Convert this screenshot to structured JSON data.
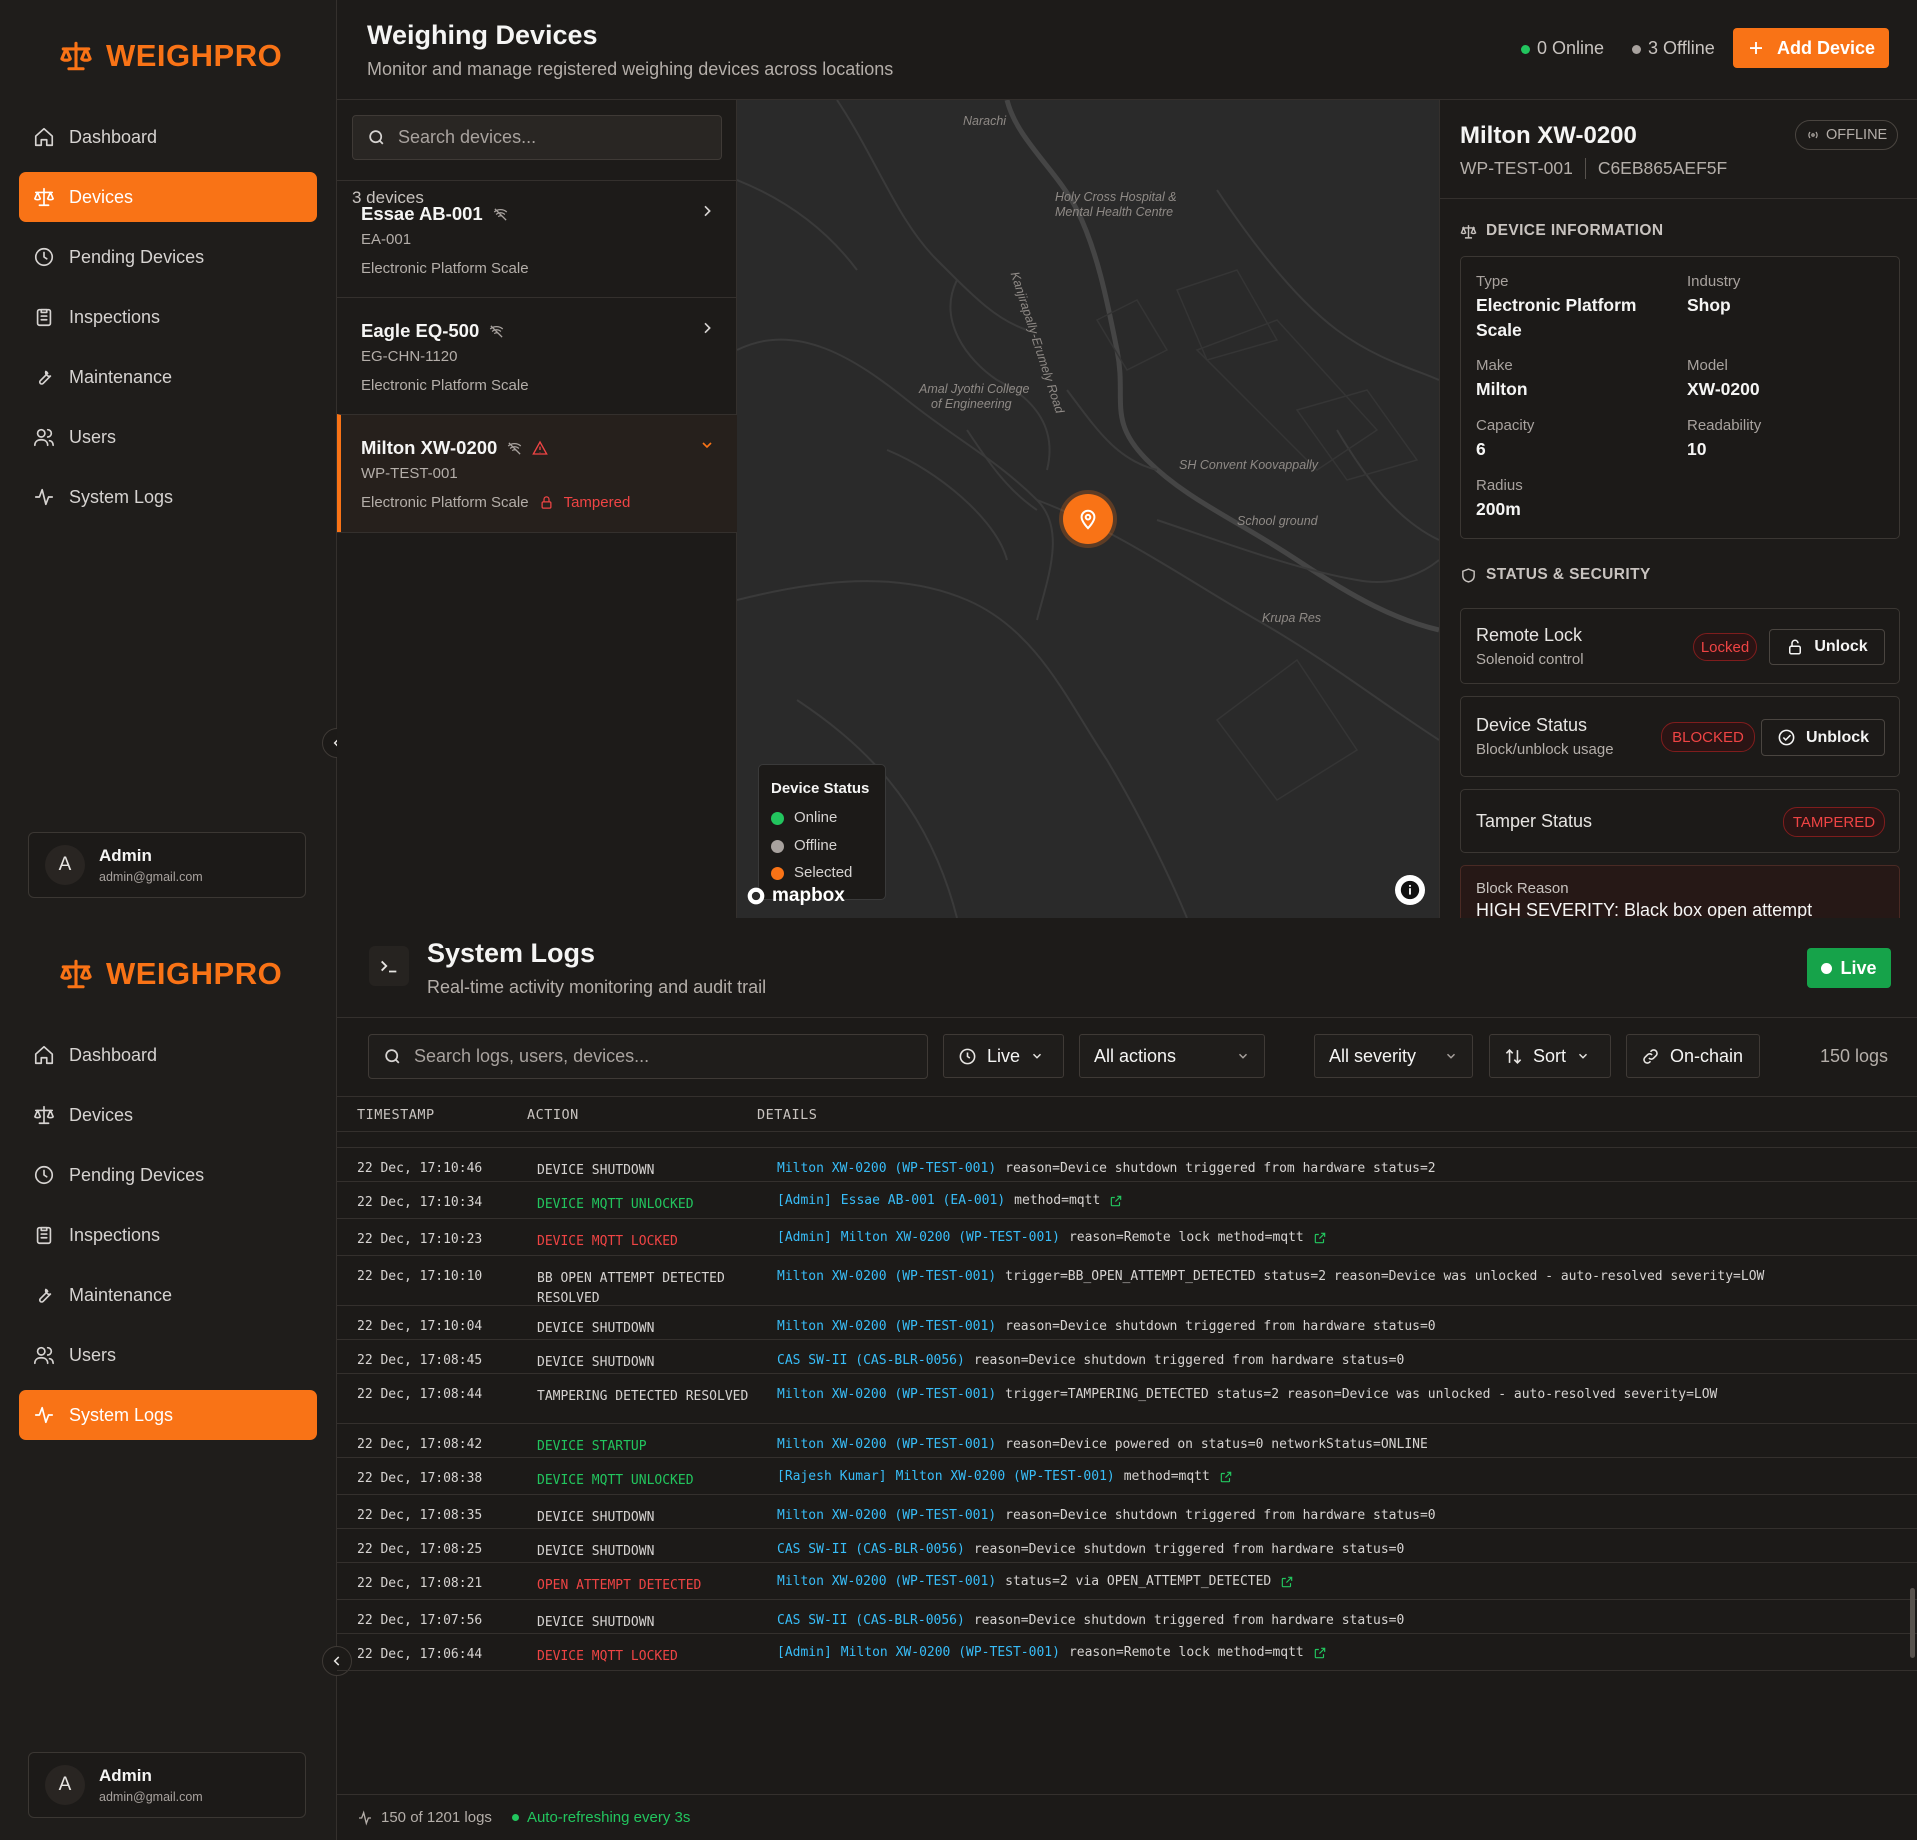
{
  "brand": "WEIGHPRO",
  "sidebar": {
    "items": [
      "Dashboard",
      "Devices",
      "Pending Devices",
      "Inspections",
      "Maintenance",
      "Users",
      "System Logs"
    ]
  },
  "user": {
    "initial": "A",
    "name": "Admin",
    "email": "admin@gmail.com"
  },
  "devices_page": {
    "title": "Weighing Devices",
    "subtitle": "Monitor and manage registered weighing devices across locations",
    "online": "0 Online",
    "offline": "3 Offline",
    "add_label": "Add Device",
    "search_placeholder": "Search devices...",
    "count": "3 devices",
    "devices": [
      {
        "name": "Essae AB-001",
        "code": "EA-001",
        "type": "Electronic Platform Scale",
        "tamper": ""
      },
      {
        "name": "Eagle EQ-500",
        "code": "EG-CHN-1120",
        "type": "Electronic Platform Scale",
        "tamper": ""
      },
      {
        "name": "Milton XW-0200",
        "code": "WP-TEST-001",
        "type": "Electronic Platform Scale",
        "tamper": "Tampered"
      }
    ],
    "map": {
      "labels": [
        "Narachi",
        "Holy Cross Hospital &",
        "Mental Health Centre",
        "Kanjirapally-Erumely Road",
        "Amal Jyothi College",
        "of Engineering",
        "SH Convent Koovappally",
        "School ground",
        "Krupa Res"
      ],
      "legend_title": "Device Status",
      "legend": [
        "Online",
        "Offline",
        "Selected"
      ],
      "attribution": "mapbox",
      "colors": {
        "online": "#22c55e",
        "offline": "#a8a29e",
        "selected": "#f97316"
      }
    },
    "detail": {
      "name": "Milton XW-0200",
      "status": "OFFLINE",
      "code": "WP-TEST-001",
      "mac": "C6EB865AEF5F",
      "info_title": "DEVICE INFORMATION",
      "fields": {
        "type_label": "Type",
        "type": "Electronic Platform Scale",
        "industry_label": "Industry",
        "industry": "Shop",
        "make_label": "Make",
        "make": "Milton",
        "model_label": "Model",
        "model": "XW-0200",
        "capacity_label": "Capacity",
        "capacity": "6",
        "readability_label": "Readability",
        "readability": "10",
        "radius_label": "Radius",
        "radius": "200m"
      },
      "security_title": "STATUS & SECURITY",
      "remote_lock": {
        "title": "Remote Lock",
        "sub": "Solenoid control",
        "badge": "Locked",
        "action": "Unlock"
      },
      "device_status": {
        "title": "Device Status",
        "sub": "Block/unblock usage",
        "badge": "BLOCKED",
        "action": "Unblock"
      },
      "tamper": {
        "title": "Tamper Status",
        "badge": "TAMPERED"
      },
      "block_reason": {
        "label": "Block Reason",
        "value": "HIGH SEVERITY: Black box open attempt"
      }
    }
  },
  "logs_page": {
    "title": "System Logs",
    "subtitle": "Real-time activity monitoring and audit trail",
    "live_badge": "Live",
    "search_placeholder": "Search logs, users, devices...",
    "filters": {
      "live": "Live",
      "actions": "All actions",
      "severity": "All severity",
      "sort": "Sort",
      "onchain": "On-chain"
    },
    "count": "150 logs",
    "columns": [
      "TIMESTAMP",
      "ACTION",
      "DETAILS"
    ],
    "rows": [
      {
        "ts": "22 Dec, 17:10:46",
        "action": "DEVICE SHUTDOWN",
        "color": "plain",
        "actor": "",
        "device": "Milton XW-0200 (WP-TEST-001)",
        "details": "reason=Device shutdown triggered from hardware status=2",
        "link": false
      },
      {
        "ts": "22 Dec, 17:10:34",
        "action": "DEVICE MQTT UNLOCKED",
        "color": "green",
        "actor": "[Admin]",
        "device": "Essae AB-001 (EA-001)",
        "details": "method=mqtt",
        "link": true
      },
      {
        "ts": "22 Dec, 17:10:23",
        "action": "DEVICE MQTT LOCKED",
        "color": "red",
        "actor": "[Admin]",
        "device": "Milton XW-0200 (WP-TEST-001)",
        "details": "reason=Remote lock method=mqtt",
        "link": true
      },
      {
        "ts": "22 Dec, 17:10:10",
        "action": "BB OPEN ATTEMPT DETECTED RESOLVED",
        "color": "plain",
        "actor": "",
        "device": "Milton XW-0200 (WP-TEST-001)",
        "details": "trigger=BB_OPEN_ATTEMPT_DETECTED status=2 reason=Device was unlocked - auto-resolved severity=LOW",
        "link": false
      },
      {
        "ts": "22 Dec, 17:10:04",
        "action": "DEVICE SHUTDOWN",
        "color": "plain",
        "actor": "",
        "device": "Milton XW-0200 (WP-TEST-001)",
        "details": "reason=Device shutdown triggered from hardware status=0",
        "link": false
      },
      {
        "ts": "22 Dec, 17:08:45",
        "action": "DEVICE SHUTDOWN",
        "color": "plain",
        "actor": "",
        "device": "CAS SW-II (CAS-BLR-0056)",
        "details": "reason=Device shutdown triggered from hardware status=0",
        "link": false
      },
      {
        "ts": "22 Dec, 17:08:44",
        "action": "TAMPERING DETECTED RESOLVED",
        "color": "plain",
        "actor": "",
        "device": "Milton XW-0200 (WP-TEST-001)",
        "details": "trigger=TAMPERING_DETECTED status=2 reason=Device was unlocked - auto-resolved severity=LOW",
        "link": false
      },
      {
        "ts": "22 Dec, 17:08:42",
        "action": "DEVICE STARTUP",
        "color": "green",
        "actor": "",
        "device": "Milton XW-0200 (WP-TEST-001)",
        "details": "reason=Device powered on status=0 networkStatus=ONLINE",
        "link": false
      },
      {
        "ts": "22 Dec, 17:08:38",
        "action": "DEVICE MQTT UNLOCKED",
        "color": "green",
        "actor": "[Rajesh Kumar]",
        "device": "Milton XW-0200 (WP-TEST-001)",
        "details": "method=mqtt",
        "link": true
      },
      {
        "ts": "22 Dec, 17:08:35",
        "action": "DEVICE SHUTDOWN",
        "color": "plain",
        "actor": "",
        "device": "Milton XW-0200 (WP-TEST-001)",
        "details": "reason=Device shutdown triggered from hardware status=0",
        "link": false
      },
      {
        "ts": "22 Dec, 17:08:25",
        "action": "DEVICE SHUTDOWN",
        "color": "plain",
        "actor": "",
        "device": "CAS SW-II (CAS-BLR-0056)",
        "details": "reason=Device shutdown triggered from hardware status=0",
        "link": false
      },
      {
        "ts": "22 Dec, 17:08:21",
        "action": "OPEN ATTEMPT DETECTED",
        "color": "red",
        "actor": "",
        "device": "Milton XW-0200 (WP-TEST-001)",
        "details": "status=2 via OPEN_ATTEMPT_DETECTED",
        "link": true
      },
      {
        "ts": "22 Dec, 17:07:56",
        "action": "DEVICE SHUTDOWN",
        "color": "plain",
        "actor": "",
        "device": "CAS SW-II (CAS-BLR-0056)",
        "details": "reason=Device shutdown triggered from hardware status=0",
        "link": false
      },
      {
        "ts": "22 Dec, 17:06:44",
        "action": "DEVICE MQTT LOCKED",
        "color": "red",
        "actor": "[Admin]",
        "device": "Milton XW-0200 (WP-TEST-001)",
        "details": "reason=Remote lock method=mqtt",
        "link": true
      }
    ],
    "footer": {
      "count": "150 of 1201 logs",
      "refresh": "Auto-refreshing every 3s"
    }
  }
}
